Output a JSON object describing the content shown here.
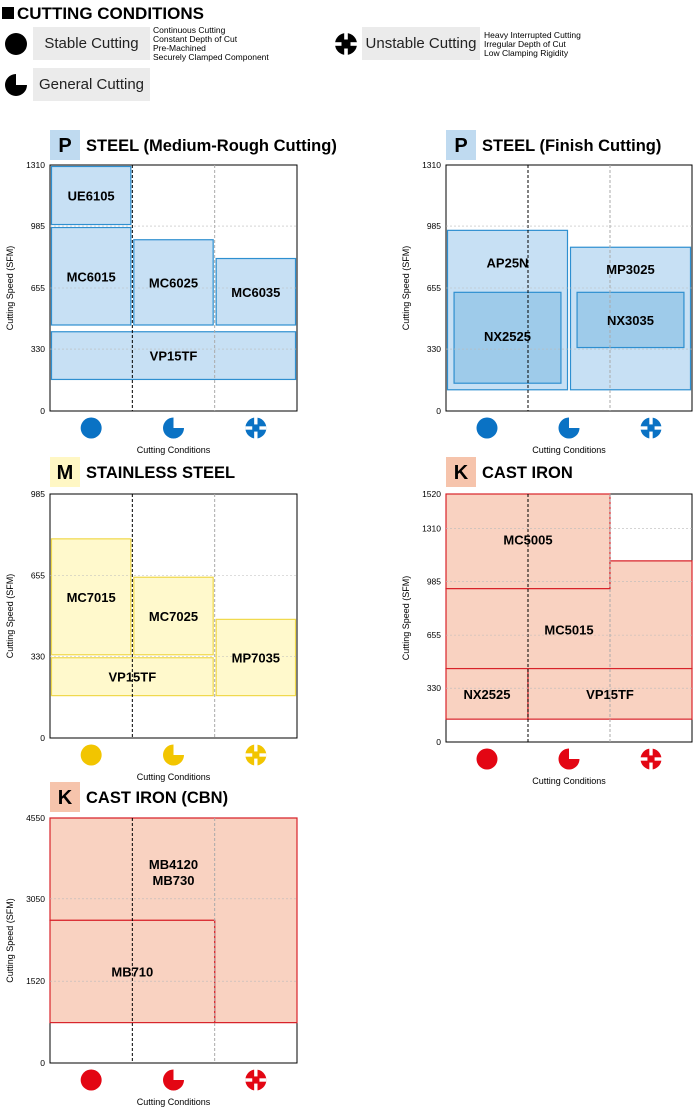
{
  "legend": {
    "title": "CUTTING CONDITIONS",
    "stable": {
      "label": "Stable Cutting",
      "notes": [
        "Continuous Cutting",
        "Constant Depth of Cut",
        "Pre-Machined",
        "Securely Clamped Component"
      ]
    },
    "unstable": {
      "label": "Unstable Cutting",
      "notes": [
        "Heavy Interrupted Cutting",
        "Irregular Depth of Cut",
        "Low Clamping Rigidity"
      ]
    },
    "general": {
      "label": "General Cutting"
    }
  },
  "colors": {
    "P": {
      "badge": "#bfdaf0",
      "fill": "#c7e0f4",
      "fill_dark": "#9ecbea",
      "stroke": "#2e8fd0",
      "icon": "#0a72c4"
    },
    "M": {
      "badge": "#fff7c4",
      "fill": "#fff9cc",
      "fill_dark": "#fff9cc",
      "stroke": "#f0d84a",
      "icon": "#f2c500"
    },
    "K": {
      "badge": "#f6c4ac",
      "fill": "#f9d2c1",
      "fill_dark": "#f9d2c1",
      "stroke": "#d8232a",
      "icon": "#e30613"
    }
  },
  "chart_data": [
    {
      "type": "bar",
      "badge": "P",
      "scheme": "P",
      "title": "STEEL (Medium-Rough Cutting)",
      "xlabel": "Cutting Conditions",
      "ylabel": "Cutting Speed (SFM)",
      "categories": [
        "Stable Cutting",
        "General Cutting",
        "Unstable Cutting"
      ],
      "yticks": [
        0,
        330,
        655,
        985,
        1310
      ],
      "ylim": [
        0,
        1310
      ],
      "bars": [
        {
          "label": "UE6105",
          "x": [
            0,
            1
          ],
          "y": [
            985,
            1310
          ]
        },
        {
          "label": "MC6015",
          "x": [
            0,
            1
          ],
          "y": [
            450,
            985
          ]
        },
        {
          "label": "MC6025",
          "x": [
            1,
            2
          ],
          "y": [
            450,
            920
          ]
        },
        {
          "label": "MC6035",
          "x": [
            2,
            3
          ],
          "y": [
            450,
            820
          ]
        },
        {
          "label": "VP15TF",
          "x": [
            0,
            3
          ],
          "y": [
            160,
            430
          ]
        }
      ]
    },
    {
      "type": "bar",
      "badge": "P",
      "scheme": "P",
      "title": "STEEL (Finish Cutting)",
      "xlabel": "Cutting Conditions",
      "ylabel": "Cutting Speed (SFM)",
      "categories": [
        "Stable Cutting",
        "General Cutting",
        "Unstable Cutting"
      ],
      "yticks": [
        0,
        330,
        655,
        985,
        1310
      ],
      "ylim": [
        0,
        1310
      ],
      "bars": [
        {
          "label": "AP25N",
          "x": [
            0,
            1.5
          ],
          "y": [
            105,
            970
          ]
        },
        {
          "label": "MP3025",
          "x": [
            1.5,
            3
          ],
          "y": [
            105,
            880
          ]
        },
        {
          "label": "NX2525",
          "x": [
            0.08,
            1.42
          ],
          "y": [
            140,
            640
          ],
          "dark": true,
          "label_y": 400
        },
        {
          "label": "NX3035",
          "x": [
            1.58,
            2.92
          ],
          "y": [
            330,
            640
          ],
          "dark": true
        },
        {
          "label": "",
          "x": [
            0,
            0
          ],
          "y": [
            0,
            0
          ]
        }
      ],
      "label_override": {
        "AP25N": 790,
        "MP3025": 755
      }
    },
    {
      "type": "bar",
      "badge": "M",
      "scheme": "M",
      "title": "STAINLESS STEEL",
      "xlabel": "Cutting Conditions",
      "ylabel": "Cutting Speed (SFM)",
      "categories": [
        "Stable Cutting",
        "General Cutting",
        "Unstable Cutting"
      ],
      "yticks": [
        0,
        330,
        655,
        985
      ],
      "ylim": [
        0,
        985
      ],
      "bars": [
        {
          "label": "MC7015",
          "x": [
            0,
            1
          ],
          "y": [
            330,
            810
          ]
        },
        {
          "label": "MC7025",
          "x": [
            1,
            2
          ],
          "y": [
            330,
            655
          ]
        },
        {
          "label": "MP7035",
          "x": [
            2,
            3
          ],
          "y": [
            165,
            485
          ]
        },
        {
          "label": "VP15TF",
          "x": [
            0,
            2
          ],
          "y": [
            165,
            330
          ]
        }
      ]
    },
    {
      "type": "bar",
      "badge": "K",
      "scheme": "K",
      "title": "CAST IRON",
      "xlabel": "Cutting Conditions",
      "ylabel": "Cutting Speed (SFM)",
      "categories": [
        "Stable Cutting",
        "General Cutting",
        "Unstable Cutting"
      ],
      "yticks": [
        0,
        330,
        655,
        985,
        1310,
        1520
      ],
      "ylim": [
        0,
        1520
      ],
      "bars": [
        {
          "label": "MC5005",
          "x": [
            0,
            2
          ],
          "y": [
            940,
            1520
          ],
          "label_y": 1240
        },
        {
          "label": "MC5015",
          "x": [
            0,
            3
          ],
          "y": [
            450,
            1110
          ],
          "label_y": 690,
          "outline": [
            [
              0,
              450
            ],
            [
              0,
              940
            ],
            [
              2,
              940
            ],
            [
              2,
              1110
            ],
            [
              3,
              1110
            ],
            [
              3,
              450
            ]
          ]
        },
        {
          "label": "NX2525",
          "x": [
            0,
            1
          ],
          "y": [
            140,
            450
          ]
        },
        {
          "label": "VP15TF",
          "x": [
            1,
            3
          ],
          "y": [
            140,
            450
          ]
        }
      ]
    },
    {
      "type": "bar",
      "badge": "K",
      "scheme": "K",
      "title": "CAST IRON (CBN)",
      "xlabel": "Cutting Conditions",
      "ylabel": "Cutting Speed (SFM)",
      "categories": [
        "Stable Cutting",
        "General Cutting",
        "Unstable Cutting"
      ],
      "yticks": [
        0,
        1520,
        3050,
        4550
      ],
      "ylim": [
        0,
        4550
      ],
      "bars": [
        {
          "label": "MB4120\nMB730",
          "x": [
            0,
            3
          ],
          "y": [
            750,
            4550
          ],
          "label_y": 3550,
          "outline": [
            [
              0,
              2650
            ],
            [
              0,
              4550
            ],
            [
              3,
              4550
            ],
            [
              3,
              750
            ],
            [
              2,
              750
            ],
            [
              2,
              2650
            ]
          ]
        },
        {
          "label": "MB710",
          "x": [
            0,
            2
          ],
          "y": [
            750,
            2650
          ]
        }
      ]
    }
  ]
}
